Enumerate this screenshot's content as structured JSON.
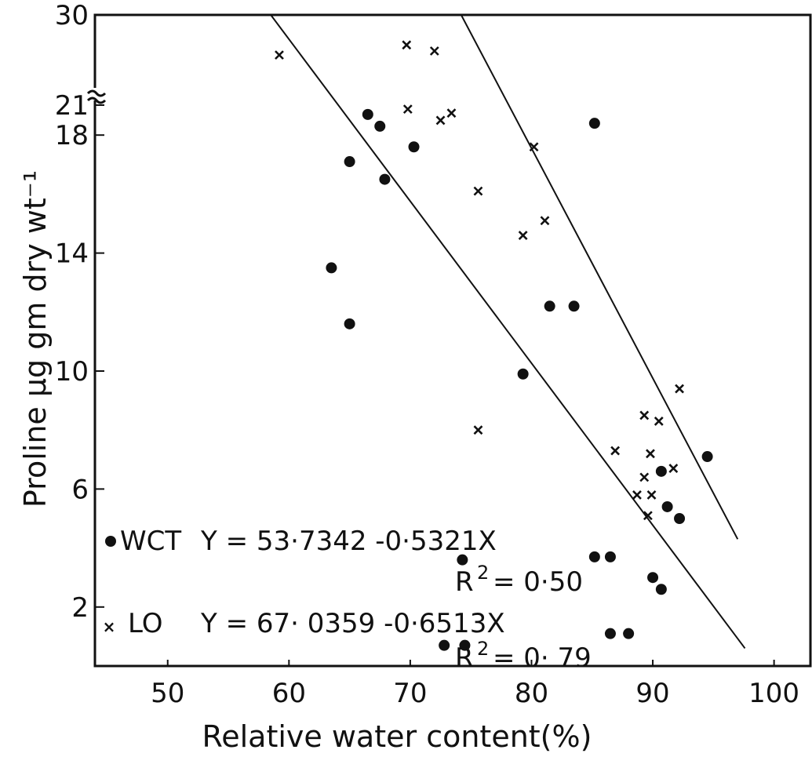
{
  "chart_data": {
    "type": "scatter",
    "title": "",
    "xlabel": "Relative water content(%)",
    "ylabel": "Proline µg gm dry wt⁻¹",
    "xlim": [
      44,
      103
    ],
    "ylim": [
      0,
      30
    ],
    "y_axis_break": {
      "between": [
        19,
        21
      ],
      "upper_ticks": [
        21,
        30
      ]
    },
    "x_ticks": [
      "50",
      "60",
      "70",
      "80",
      "90",
      "100"
    ],
    "x_tick_values": [
      50,
      60,
      70,
      80,
      90,
      100
    ],
    "y_ticks": [
      "2",
      "6",
      "10",
      "14",
      "18",
      "21",
      "30"
    ],
    "y_tick_values": [
      2,
      6,
      10,
      14,
      18,
      21,
      30
    ],
    "grid": false,
    "series": [
      {
        "name": "WCT",
        "marker": "dot",
        "equation": "Y = 53·7342 -0·5321X",
        "r_squared_label": "R",
        "r_squared_sup": "2",
        "r_squared_value": "= 0·50",
        "x": [
          66.5,
          67.5,
          70.3,
          65,
          67.9,
          63.5,
          65,
          81.5,
          83.5,
          79.3,
          85.2,
          74.3,
          85.2,
          86.5,
          90,
          90.7,
          91.2,
          92.2,
          90.7,
          94.5,
          86.5,
          88,
          72.8,
          74.5
        ],
        "y": [
          18.7,
          18.3,
          17.6,
          17.1,
          16.5,
          13.5,
          11.6,
          12.2,
          12.2,
          9.9,
          18.4,
          3.6,
          3.7,
          3.7,
          3.0,
          2.6,
          5.4,
          5.0,
          6.6,
          7.1,
          1.1,
          1.1,
          0.7,
          0.7
        ]
      },
      {
        "name": "LO",
        "marker": "x",
        "equation": "Y  = 67· 0359  -0·6513X",
        "r_squared_label": "R",
        "r_squared_sup": "2",
        "r_squared_value": "=  0· 79",
        "x": [
          59.2,
          69.7,
          72,
          69.8,
          73.4,
          72.5,
          80.2,
          75.6,
          81.1,
          79.3,
          75.6,
          86.9,
          89.3,
          90.5,
          89.8,
          92.2,
          89.3,
          91.7,
          88.7,
          89.9,
          89.6
        ],
        "y": [
          26,
          27,
          26.4,
          20.6,
          20.2,
          18.5,
          17.6,
          16.1,
          15.1,
          14.6,
          8.0,
          7.3,
          8.5,
          8.3,
          7.2,
          9.4,
          6.4,
          6.7,
          5.8,
          5.8,
          5.1
        ]
      }
    ],
    "regression_lines": [
      {
        "series": "WCT",
        "points": [
          [
            58.5,
            30
          ],
          [
            97.6,
            0.6
          ]
        ]
      },
      {
        "series": "LO",
        "points": [
          [
            74.2,
            30
          ],
          [
            97,
            4.3
          ]
        ]
      }
    ]
  }
}
